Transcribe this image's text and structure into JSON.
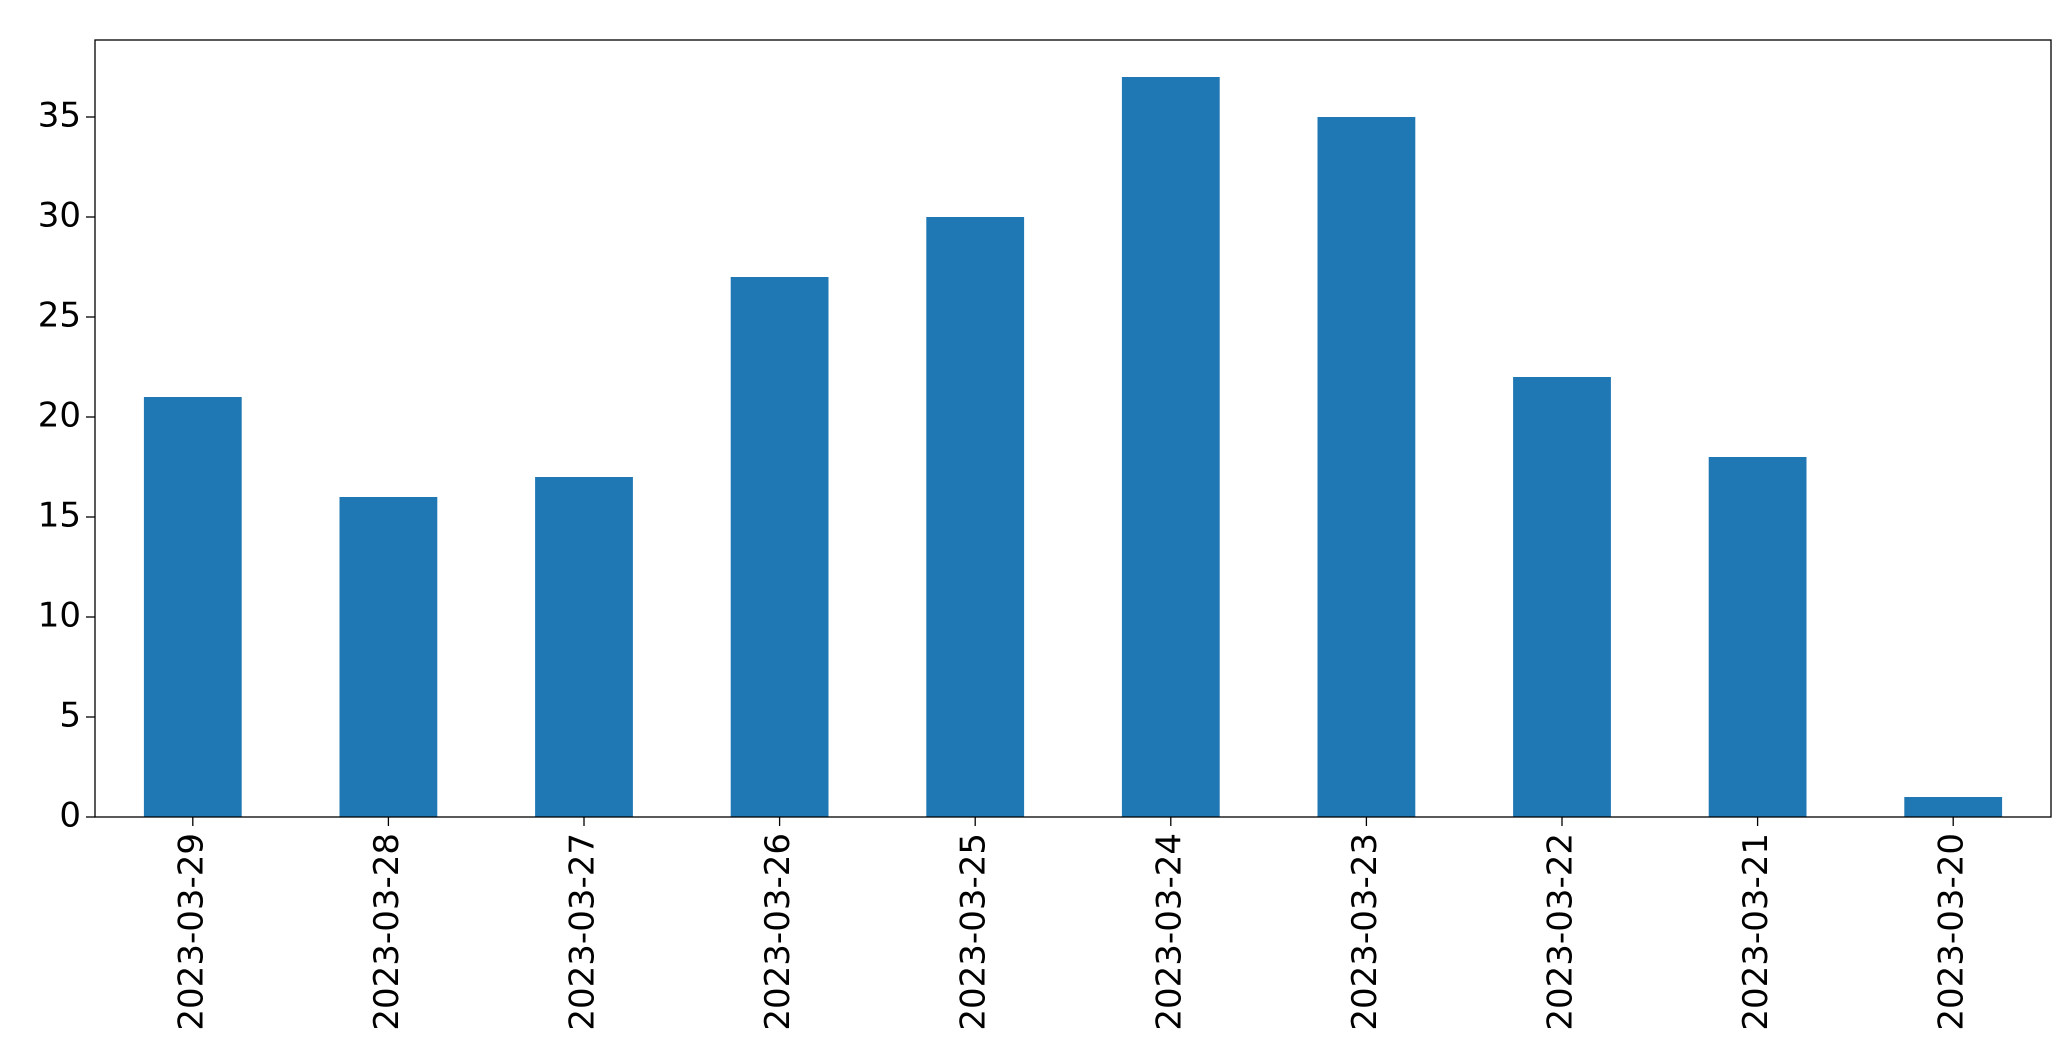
{
  "chart_data": {
    "type": "bar",
    "categories": [
      "2023-03-29",
      "2023-03-28",
      "2023-03-27",
      "2023-03-26",
      "2023-03-25",
      "2023-03-24",
      "2023-03-23",
      "2023-03-22",
      "2023-03-21",
      "2023-03-20"
    ],
    "values": [
      21,
      16,
      17,
      27,
      30,
      37,
      35,
      22,
      18,
      1
    ],
    "color": "#1f77b4",
    "ylim": [
      0,
      38.85
    ],
    "yticks": [
      0,
      5,
      10,
      15,
      20,
      25,
      30,
      35
    ],
    "grid": false
  }
}
